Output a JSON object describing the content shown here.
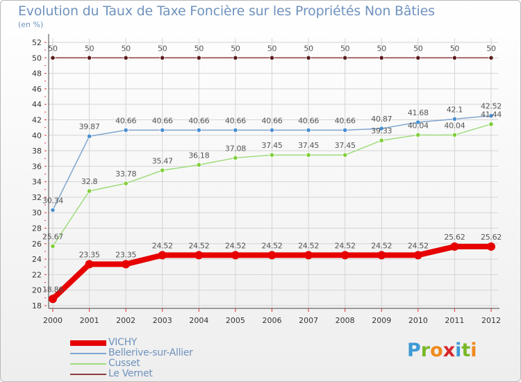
{
  "header": {
    "title": "Evolution du Taux de Taxe Foncière sur les Propriétés Non Bâties",
    "unit": "(en %)"
  },
  "logo": {
    "letters": [
      "P",
      "r",
      "o",
      "x",
      "i",
      "t",
      "i"
    ],
    "colors": [
      "#3e9ad6",
      "#7ab828",
      "#f08a1c",
      "#d7262a",
      "#3e9ad6",
      "#7ab828",
      "#f08a1c"
    ]
  },
  "chart_data": {
    "type": "line",
    "title": "Evolution du Taux de Taxe Foncière sur les Propriétés Non Bâties",
    "ylabel": "(en %)",
    "xlabel": "",
    "x": [
      "2000",
      "2001",
      "2002",
      "2003",
      "2004",
      "2005",
      "2006",
      "2007",
      "2008",
      "2009",
      "2010",
      "2011",
      "2012"
    ],
    "ylim": [
      18,
      52
    ],
    "yticks": [
      18,
      20,
      22,
      24,
      26,
      28,
      30,
      32,
      34,
      36,
      38,
      40,
      42,
      44,
      46,
      48,
      50,
      52
    ],
    "grid": true,
    "legend": "bottom-left",
    "series": [
      {
        "name": "VICHY",
        "color": "#e60000",
        "marker": "#e60000",
        "values": [
          18.86,
          23.35,
          23.35,
          24.52,
          24.52,
          24.52,
          24.52,
          24.52,
          24.52,
          24.52,
          24.52,
          25.62,
          25.62
        ],
        "labels": [
          "18.86",
          "23.35",
          "23.35",
          "24.52",
          "24.52",
          "24.52",
          "24.52",
          "24.52",
          "24.52",
          "24.52",
          "24.52",
          "25.62",
          "25.62"
        ]
      },
      {
        "name": "Bellerive-sur-Allier",
        "color": "#7fa5cf",
        "marker": "#4b8fd1",
        "values": [
          30.34,
          39.87,
          40.66,
          40.66,
          40.66,
          40.66,
          40.66,
          40.66,
          40.66,
          40.87,
          41.68,
          42.1,
          42.52
        ],
        "labels": [
          "30.34",
          "39.87",
          "40.66",
          "40.66",
          "40.66",
          "40.66",
          "40.66",
          "40.66",
          "40.66",
          "40.87",
          "41.68",
          "42.1",
          "42.52"
        ]
      },
      {
        "name": "Cusset",
        "color": "#9fdc7a",
        "marker": "#7fcf3a",
        "values": [
          25.67,
          32.8,
          33.78,
          35.47,
          36.18,
          37.08,
          37.45,
          37.45,
          37.45,
          39.33,
          40.04,
          40.04,
          41.44
        ],
        "labels": [
          "25.67",
          "32.8",
          "33.78",
          "35.47",
          "36.18",
          "37.08",
          "37.45",
          "37.45",
          "37.45",
          "39.33",
          "40.04",
          "40.04",
          "41.44"
        ]
      },
      {
        "name": "Le Vernet",
        "color": "#8b3d3d",
        "marker": "#5a1e1e",
        "values": [
          50,
          50,
          50,
          50,
          50,
          50,
          50,
          50,
          50,
          50,
          50,
          50,
          50
        ],
        "labels": [
          "50",
          "50",
          "50",
          "50",
          "50",
          "50",
          "50",
          "50",
          "50",
          "50",
          "50",
          "50",
          "50"
        ]
      }
    ]
  }
}
